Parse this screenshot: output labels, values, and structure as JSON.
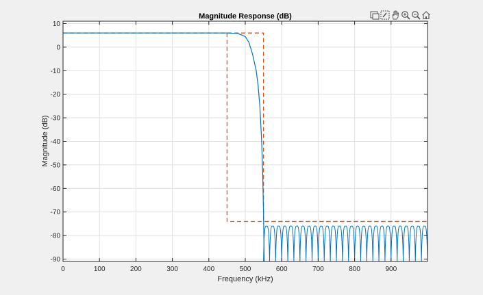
{
  "toolbar": {
    "icons": [
      "export-icon",
      "brush-icon",
      "pan-icon",
      "zoom-in-icon",
      "zoom-out-icon",
      "home-icon"
    ]
  },
  "colors": {
    "background": "#f0f0f0",
    "axes_background": "#ffffff",
    "grid": "#dfdfdf",
    "response": "#0072bd",
    "spec": "#d95319"
  },
  "chart_data": {
    "type": "line",
    "title": "Magnitude Response (dB)",
    "xlabel": "Frequency (kHz)",
    "ylabel": "Magnitude (dB)",
    "xlim": [
      0,
      1000
    ],
    "ylim": [
      -91,
      11
    ],
    "xticks": [
      0,
      100,
      200,
      300,
      400,
      500,
      600,
      700,
      800,
      900
    ],
    "yticks": [
      10,
      0,
      -10,
      -20,
      -30,
      -40,
      -50,
      -60,
      -70,
      -80,
      -90
    ],
    "grid": true,
    "passband_gain_db": 6,
    "passband_edge_khz": 450,
    "stopband_edge_khz": 550,
    "stopband_attenuation_db": -74,
    "stopband_ripple_peak_db": -76,
    "stopband_ripple_count": 27,
    "series": [
      {
        "style": "solid",
        "x": [
          0,
          450,
          480,
          500,
          510,
          520,
          530,
          535,
          540,
          545,
          548,
          550,
          552
        ],
        "y": [
          6,
          6,
          5.8,
          4.5,
          2,
          -3,
          -10,
          -16,
          -25,
          -40,
          -55,
          -70,
          -91
        ]
      },
      {
        "style": "dashed",
        "x": [
          0,
          550,
          550,
          1000
        ],
        "y": [
          6,
          6,
          -74,
          -74
        ]
      },
      {
        "style": "dashed",
        "x": [
          450,
          450,
          1000
        ],
        "y": [
          6,
          -74,
          -74
        ]
      }
    ]
  }
}
